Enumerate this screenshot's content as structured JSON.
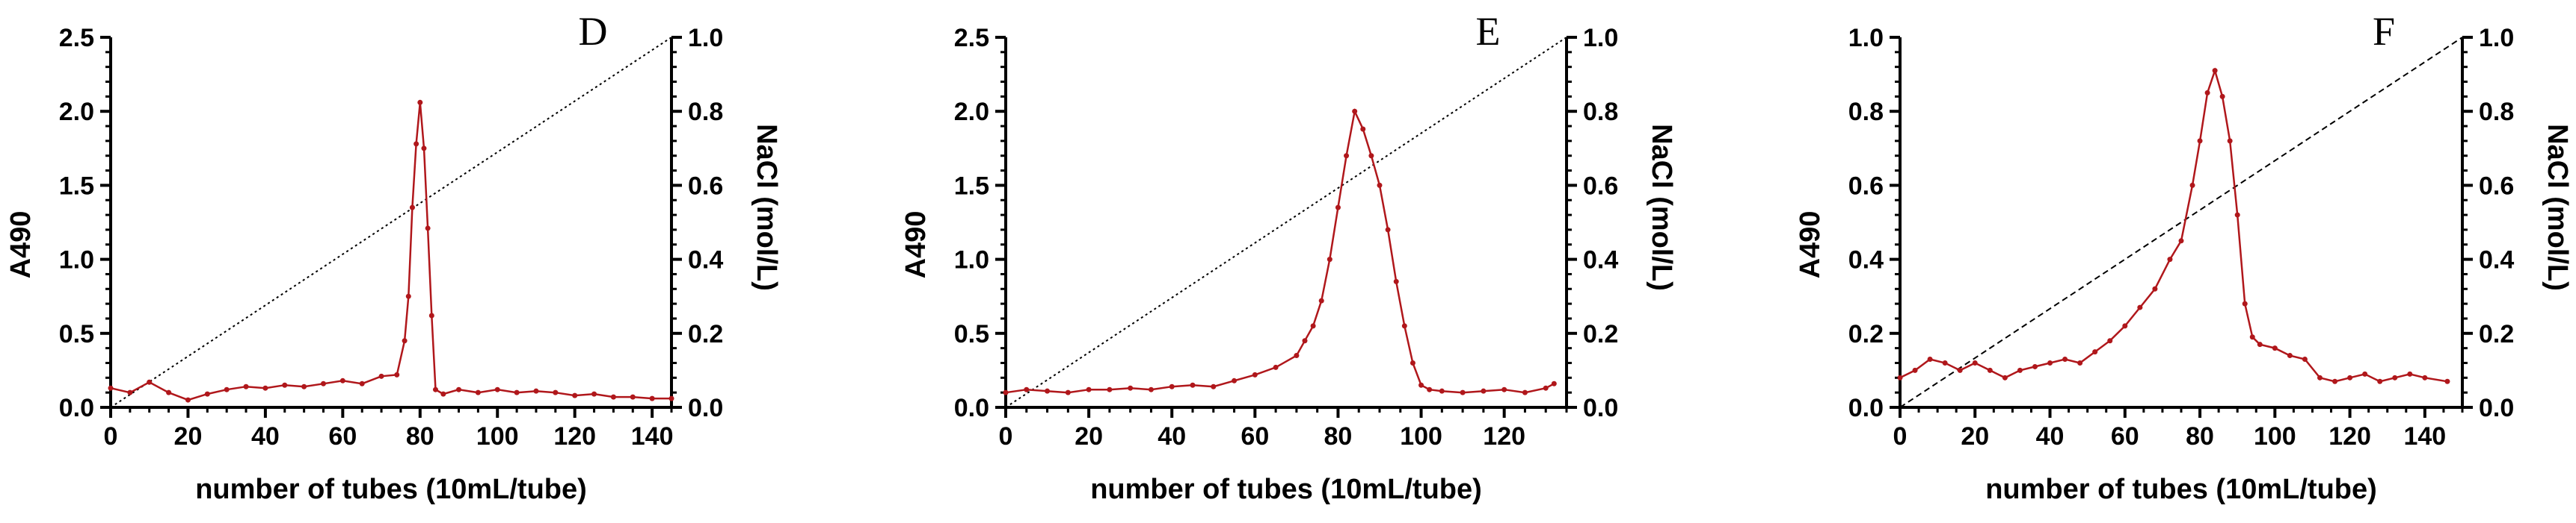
{
  "chart_data": [
    {
      "type": "line",
      "panel_label": "D",
      "xlabel": "number of tubes (10mL/tube)",
      "ylabel": "A490",
      "y2label": "NaCl (mol/L)",
      "xlim": [
        0,
        145
      ],
      "ylim": [
        0,
        2.5
      ],
      "y2lim": [
        0,
        1.0
      ],
      "x_ticks": [
        0,
        20,
        40,
        60,
        80,
        100,
        120,
        140
      ],
      "y_ticks": [
        0.0,
        0.5,
        1.0,
        1.5,
        2.0,
        2.5
      ],
      "y_tick_labels": [
        "0.0",
        "0.5",
        "1.0",
        "1.5",
        "2.0",
        "2.5"
      ],
      "y2_ticks": [
        0.0,
        0.2,
        0.4,
        0.6,
        0.8,
        1.0
      ],
      "y2_tick_labels": [
        "0.0",
        "0.2",
        "0.4",
        "0.6",
        "0.8",
        "1.0"
      ],
      "gradient": {
        "name": "NaCl",
        "x": [
          0,
          145
        ],
        "y": [
          0,
          1.0
        ],
        "style": "dotted"
      },
      "series": [
        {
          "name": "A490",
          "x": [
            0,
            5,
            10,
            15,
            20,
            25,
            30,
            35,
            40,
            45,
            50,
            55,
            60,
            65,
            70,
            74,
            76,
            77,
            78,
            79,
            80,
            81,
            82,
            83,
            84,
            86,
            90,
            95,
            100,
            105,
            110,
            115,
            120,
            125,
            130,
            135,
            140,
            145
          ],
          "y": [
            0.13,
            0.1,
            0.17,
            0.1,
            0.05,
            0.09,
            0.12,
            0.14,
            0.13,
            0.15,
            0.14,
            0.16,
            0.18,
            0.16,
            0.21,
            0.22,
            0.45,
            0.75,
            1.35,
            1.78,
            2.06,
            1.75,
            1.21,
            0.62,
            0.12,
            0.09,
            0.12,
            0.1,
            0.12,
            0.1,
            0.11,
            0.1,
            0.08,
            0.09,
            0.07,
            0.07,
            0.06,
            0.06
          ]
        }
      ]
    },
    {
      "type": "line",
      "panel_label": "E",
      "xlabel": "number of tubes (10mL/tube)",
      "ylabel": "A490",
      "y2label": "NaCl (mol/L)",
      "xlim": [
        0,
        135
      ],
      "ylim": [
        0,
        2.5
      ],
      "y2lim": [
        0,
        1.0
      ],
      "x_ticks": [
        0,
        20,
        40,
        60,
        80,
        100,
        120
      ],
      "y_ticks": [
        0.0,
        0.5,
        1.0,
        1.5,
        2.0,
        2.5
      ],
      "y_tick_labels": [
        "0.0",
        "0.5",
        "1.0",
        "1.5",
        "2.0",
        "2.5"
      ],
      "y2_ticks": [
        0.0,
        0.2,
        0.4,
        0.6,
        0.8,
        1.0
      ],
      "y2_tick_labels": [
        "0.0",
        "0.2",
        "0.4",
        "0.6",
        "0.8",
        "1.0"
      ],
      "gradient": {
        "name": "NaCl",
        "x": [
          0,
          135
        ],
        "y": [
          0,
          1.0
        ],
        "style": "dotted"
      },
      "series": [
        {
          "name": "A490",
          "x": [
            0,
            5,
            10,
            15,
            20,
            25,
            30,
            35,
            40,
            45,
            50,
            55,
            60,
            65,
            70,
            72,
            74,
            76,
            78,
            80,
            82,
            84,
            86,
            88,
            90,
            92,
            94,
            96,
            98,
            100,
            102,
            105,
            110,
            115,
            120,
            125,
            130,
            132
          ],
          "y": [
            0.1,
            0.12,
            0.11,
            0.1,
            0.12,
            0.12,
            0.13,
            0.12,
            0.14,
            0.15,
            0.14,
            0.18,
            0.22,
            0.27,
            0.35,
            0.45,
            0.55,
            0.72,
            1.0,
            1.35,
            1.7,
            2.0,
            1.88,
            1.7,
            1.5,
            1.2,
            0.85,
            0.55,
            0.3,
            0.15,
            0.12,
            0.11,
            0.1,
            0.11,
            0.12,
            0.1,
            0.13,
            0.16
          ]
        }
      ]
    },
    {
      "type": "line",
      "panel_label": "F",
      "xlabel": "number of tubes (10mL/tube)",
      "ylabel": "A490",
      "y2label": "NaCl (mol/L)",
      "xlim": [
        0,
        150
      ],
      "ylim": [
        0,
        1.0
      ],
      "y2lim": [
        0,
        1.0
      ],
      "x_ticks": [
        0,
        20,
        40,
        60,
        80,
        100,
        120,
        140
      ],
      "y_ticks": [
        0.0,
        0.2,
        0.4,
        0.6,
        0.8,
        1.0
      ],
      "y_tick_labels": [
        "0.0",
        "0.2",
        "0.4",
        "0.6",
        "0.8",
        "1.0"
      ],
      "y2_ticks": [
        0.0,
        0.2,
        0.4,
        0.6,
        0.8,
        1.0
      ],
      "y2_tick_labels": [
        "0.0",
        "0.2",
        "0.4",
        "0.6",
        "0.8",
        "1.0"
      ],
      "gradient": {
        "name": "NaCl",
        "x": [
          0,
          150
        ],
        "y": [
          0,
          1.0
        ],
        "style": "dashed"
      },
      "series": [
        {
          "name": "A490",
          "x": [
            0,
            4,
            8,
            12,
            16,
            20,
            24,
            28,
            32,
            36,
            40,
            44,
            48,
            52,
            56,
            60,
            64,
            68,
            72,
            75,
            78,
            80,
            82,
            84,
            86,
            88,
            90,
            92,
            94,
            96,
            100,
            104,
            108,
            112,
            116,
            120,
            124,
            128,
            132,
            136,
            140,
            146
          ],
          "y": [
            0.08,
            0.1,
            0.13,
            0.12,
            0.1,
            0.12,
            0.1,
            0.08,
            0.1,
            0.11,
            0.12,
            0.13,
            0.12,
            0.15,
            0.18,
            0.22,
            0.27,
            0.32,
            0.4,
            0.45,
            0.6,
            0.72,
            0.85,
            0.91,
            0.84,
            0.72,
            0.52,
            0.28,
            0.19,
            0.17,
            0.16,
            0.14,
            0.13,
            0.08,
            0.07,
            0.08,
            0.09,
            0.07,
            0.08,
            0.09,
            0.08,
            0.07
          ]
        }
      ]
    }
  ]
}
